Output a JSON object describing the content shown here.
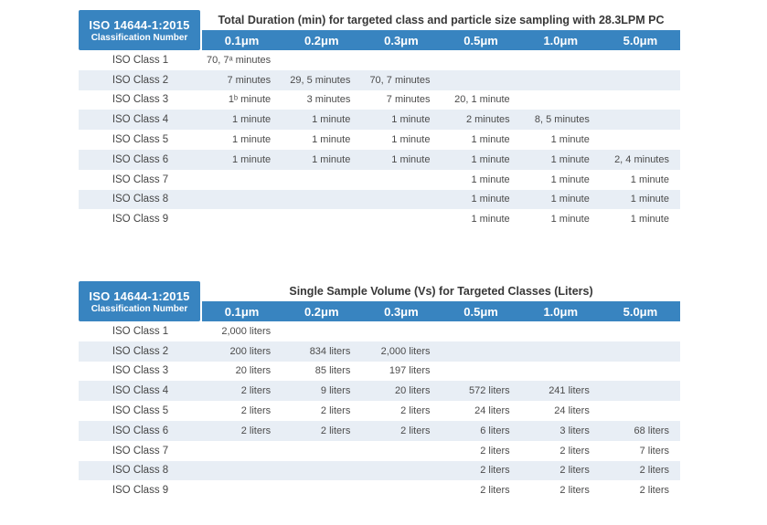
{
  "colors": {
    "header_blue": "#3884c0",
    "row_stripe": "#e8eef5",
    "background": "#ffffff"
  },
  "tables": [
    {
      "corner_line1": "ISO 14644-1:2015",
      "corner_line2": "Classification Number",
      "title": "Total Duration (min) for targeted class and particle size sampling with 28.3LPM PC",
      "columns": [
        "0.1μm",
        "0.2μm",
        "0.3μm",
        "0.5μm",
        "1.0μm",
        "5.0μm"
      ],
      "rows": [
        {
          "label": "ISO Class 1",
          "cells": [
            "70, 7ᵃ minutes",
            "",
            "",
            "",
            "",
            ""
          ]
        },
        {
          "label": "ISO Class 2",
          "cells": [
            "7 minutes",
            "29, 5 minutes",
            "70, 7 minutes",
            "",
            "",
            ""
          ]
        },
        {
          "label": "ISO Class 3",
          "cells": [
            "1ᵇ minute",
            "3 minutes",
            "7 minutes",
            "20, 1 minute",
            "",
            ""
          ]
        },
        {
          "label": "ISO Class 4",
          "cells": [
            "1 minute",
            "1 minute",
            "1 minute",
            "2 minutes",
            "8, 5 minutes",
            ""
          ]
        },
        {
          "label": "ISO Class 5",
          "cells": [
            "1 minute",
            "1 minute",
            "1 minute",
            "1 minute",
            "1 minute",
            ""
          ]
        },
        {
          "label": "ISO Class 6",
          "cells": [
            "1 minute",
            "1 minute",
            "1 minute",
            "1 minute",
            "1 minute",
            "2, 4 minutes"
          ]
        },
        {
          "label": "ISO Class 7",
          "cells": [
            "",
            "",
            "",
            "1 minute",
            "1 minute",
            "1 minute"
          ]
        },
        {
          "label": "ISO Class 8",
          "cells": [
            "",
            "",
            "",
            "1 minute",
            "1 minute",
            "1 minute"
          ]
        },
        {
          "label": "ISO Class 9",
          "cells": [
            "",
            "",
            "",
            "1 minute",
            "1 minute",
            "1 minute"
          ]
        }
      ]
    },
    {
      "corner_line1": "ISO 14644-1:2015",
      "corner_line2": "Classification Number",
      "title": "Single Sample Volume (Vs) for Targeted Classes (Liters)",
      "columns": [
        "0.1μm",
        "0.2μm",
        "0.3μm",
        "0.5μm",
        "1.0μm",
        "5.0μm"
      ],
      "rows": [
        {
          "label": "ISO Class 1",
          "cells": [
            "2,000 liters",
            "",
            "",
            "",
            "",
            ""
          ]
        },
        {
          "label": "ISO Class 2",
          "cells": [
            "200 liters",
            "834 liters",
            "2,000 liters",
            "",
            "",
            ""
          ]
        },
        {
          "label": "ISO Class 3",
          "cells": [
            "20 liters",
            "85 liters",
            "197 liters",
            "",
            "",
            ""
          ]
        },
        {
          "label": "ISO Class 4",
          "cells": [
            "2 liters",
            "9 liters",
            "20 liters",
            "572 liters",
            "241 liters",
            ""
          ]
        },
        {
          "label": "ISO Class 5",
          "cells": [
            "2 liters",
            "2 liters",
            "2 liters",
            "24 liters",
            "24 liters",
            ""
          ]
        },
        {
          "label": "ISO Class 6",
          "cells": [
            "2 liters",
            "2 liters",
            "2 liters",
            "6 liters",
            "3 liters",
            "68 liters"
          ]
        },
        {
          "label": "ISO Class 7",
          "cells": [
            "",
            "",
            "",
            "2 liters",
            "2 liters",
            "7 liters"
          ]
        },
        {
          "label": "ISO Class 8",
          "cells": [
            "",
            "",
            "",
            "2 liters",
            "2 liters",
            "2 liters"
          ]
        },
        {
          "label": "ISO Class 9",
          "cells": [
            "",
            "",
            "",
            "2 liters",
            "2 liters",
            "2 liters"
          ]
        }
      ]
    }
  ]
}
